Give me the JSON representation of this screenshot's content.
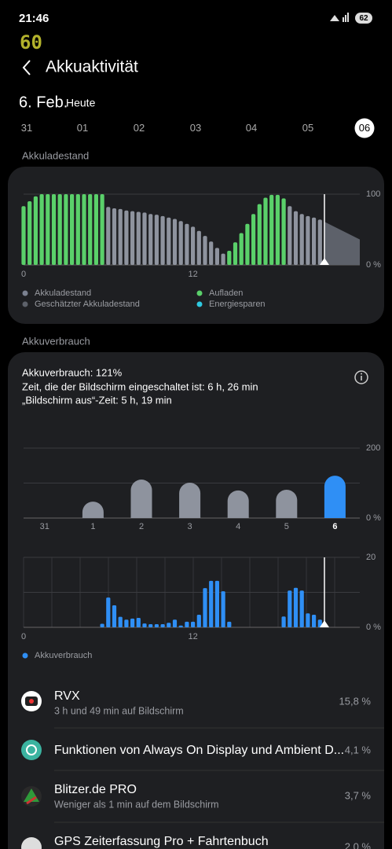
{
  "status_bar": {
    "time": "21:46",
    "battery": "62",
    "fps": "60"
  },
  "header": {
    "title": "Akkuaktivität"
  },
  "date": {
    "day": "6. Feb.",
    "relative": "Heute"
  },
  "days": {
    "labels": [
      "31",
      "01",
      "02",
      "03",
      "04",
      "05",
      "06"
    ],
    "selected": 6
  },
  "sections": {
    "level": "Akkuladestand",
    "usage": "Akkuverbrauch"
  },
  "chart_data": [
    {
      "type": "bar",
      "categories": [
        "0",
        null,
        null,
        null,
        null,
        null,
        null,
        null,
        null,
        null,
        null,
        null,
        null,
        null,
        null,
        null,
        null,
        null,
        null,
        null,
        null,
        null,
        null,
        null,
        null,
        null,
        null,
        null,
        "12",
        null,
        null,
        null,
        null,
        null,
        null,
        null,
        null,
        null,
        null,
        null,
        null,
        null,
        null,
        null,
        null,
        null,
        null,
        null,
        null,
        null
      ],
      "series": [
        {
          "name": "Akkuladestand",
          "color": "#8e939e",
          "legend_color": "#7b8190",
          "values": [
            null,
            null,
            null,
            null,
            null,
            null,
            null,
            null,
            null,
            null,
            null,
            null,
            null,
            null,
            82,
            80,
            79,
            77,
            76,
            75,
            74,
            72,
            71,
            69,
            67,
            65,
            62,
            58,
            54,
            48,
            41,
            33,
            24,
            16,
            null,
            null,
            null,
            null,
            null,
            null,
            null,
            null,
            null,
            null,
            83,
            76,
            72,
            69,
            67,
            64
          ]
        },
        {
          "name": "Aufladen",
          "color": "#5ad06a",
          "legend_color": "#5ad06a",
          "values": [
            83,
            90,
            97,
            100,
            100,
            100,
            100,
            100,
            100,
            100,
            100,
            100,
            100,
            100,
            null,
            null,
            null,
            null,
            null,
            null,
            null,
            null,
            null,
            null,
            null,
            null,
            null,
            null,
            null,
            null,
            null,
            null,
            null,
            null,
            20,
            32,
            45,
            58,
            72,
            86,
            95,
            99,
            99,
            94,
            null,
            null,
            null,
            null,
            null,
            null
          ]
        }
      ],
      "estimate": {
        "name": "Geschätzter Akkuladestand",
        "color": "#5d616a",
        "values": [
          61,
          36
        ]
      },
      "extra_legend": [
        {
          "name": "Energiesparen",
          "color": "#2ec9e0"
        }
      ],
      "ylim": [
        0,
        100
      ],
      "yticks": [
        {
          "value": 0,
          "label": "0 %"
        },
        100
      ]
    },
    {
      "type": "bar",
      "categories": [
        "31",
        "1",
        "2",
        "3",
        "4",
        "5",
        "6"
      ],
      "values": [
        0,
        47,
        110,
        101,
        79,
        81,
        121
      ],
      "color": "#8e939e",
      "highlight_color": "#2f8ff5",
      "highlight_index": 6,
      "ylim": [
        0,
        200
      ],
      "yticks": [
        {
          "value": 0,
          "label": "0 %"
        },
        200
      ],
      "gridlines": [
        100
      ]
    },
    {
      "type": "bar",
      "categories": [
        "0",
        null,
        null,
        null,
        null,
        null,
        null,
        null,
        null,
        null,
        null,
        null,
        null,
        null,
        null,
        null,
        null,
        null,
        null,
        null,
        null,
        null,
        null,
        null,
        null,
        null,
        null,
        null,
        "12",
        null,
        null,
        null,
        null,
        null,
        null,
        null,
        null,
        null,
        null,
        null,
        null,
        null,
        null,
        null,
        null,
        null,
        null,
        null,
        null,
        null
      ],
      "series": [
        {
          "name": "Akkuverbrauch",
          "color": "#2f8ff5",
          "values": [
            0,
            0,
            0,
            0,
            0,
            0,
            0,
            0,
            0,
            0,
            0,
            0,
            0,
            1,
            8.5,
            6.3,
            3,
            2.2,
            2.5,
            2.7,
            1.1,
            0.9,
            0.9,
            0.9,
            1.3,
            2.2,
            0.5,
            1.6,
            1.6,
            3.6,
            11.2,
            13.3,
            13.3,
            10.3,
            1.6,
            0,
            0,
            0,
            0,
            0,
            0,
            0,
            0,
            3.1,
            10.5,
            11.3,
            10.5,
            4,
            3.6,
            2.2
          ]
        }
      ],
      "ylim": [
        0,
        20
      ],
      "yticks": [
        {
          "value": 0,
          "label": "0 %"
        },
        20
      ],
      "gridlines": [
        10
      ]
    }
  ],
  "usage_summary": [
    "Akkuverbrauch: 121%",
    "Zeit, die der Bildschirm eingeschaltet ist: 6 h, 26 min",
    "„Bildschirm aus“-Zeit: 5 h, 19 min"
  ],
  "apps": [
    {
      "name": "RVX",
      "detail": "3 h und 49 min auf Bildschirm",
      "percent": "15,8 %"
    },
    {
      "name": "Funktionen von Always On Display und Ambient D...",
      "percent": "4,1 %"
    },
    {
      "name": "Blitzer.de PRO",
      "detail": "Weniger als 1 min auf dem Bildschirm",
      "percent": "3,7 %"
    },
    {
      "name": "GPS Zeiterfassung Pro + Fahrtenbuch",
      "percent": "2,0 %"
    }
  ]
}
